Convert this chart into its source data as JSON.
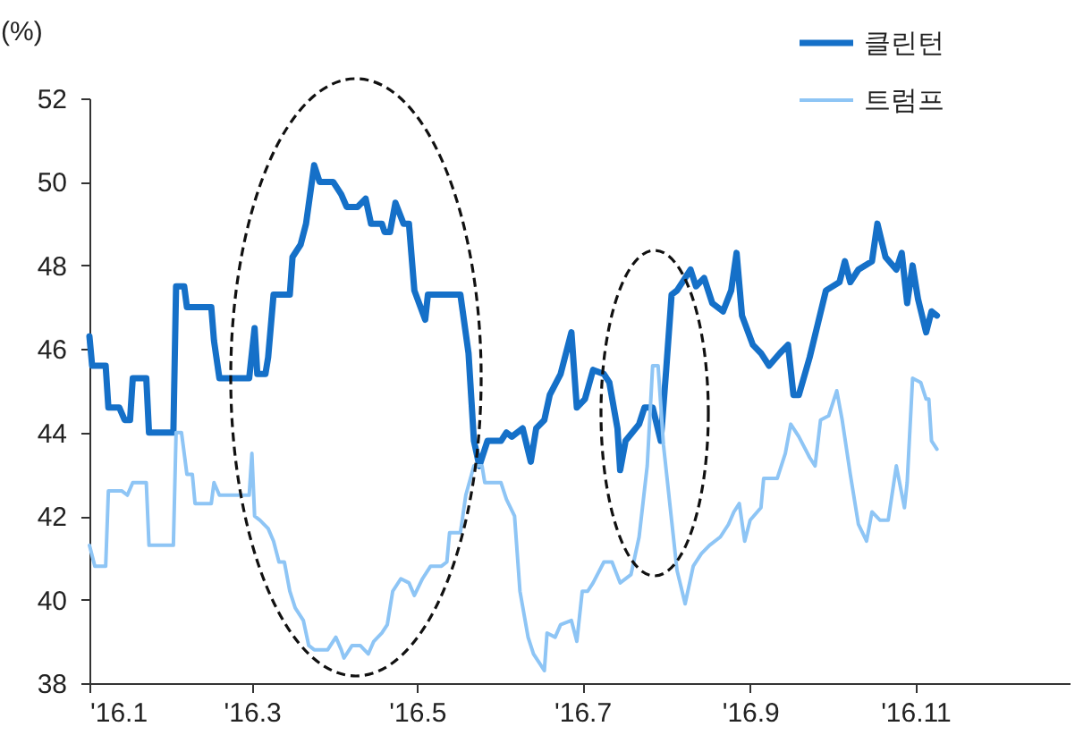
{
  "chart_data": {
    "type": "line",
    "ylabel": "(%)",
    "legend": "top right",
    "grid": false,
    "xlim": [
      "2016-01-01",
      "2016-12-28"
    ],
    "xticks": [
      {
        "value": "2016-01",
        "label": "'16.1"
      },
      {
        "value": "2016-03",
        "label": "'16.3"
      },
      {
        "value": "2016-05",
        "label": "'16.5"
      },
      {
        "value": "2016-07",
        "label": "'16.7"
      },
      {
        "value": "2016-09",
        "label": "'16.9"
      },
      {
        "value": "2016-11",
        "label": "'16.11"
      }
    ],
    "ylim": [
      38,
      52
    ],
    "yticks": [
      38,
      40,
      42,
      44,
      46,
      48,
      50,
      52
    ],
    "series": [
      {
        "name": "클린턴",
        "color": "#1570c8",
        "x": [
          "2016-01-01",
          "2016-01-02",
          "2016-01-07",
          "2016-01-08",
          "2016-01-12",
          "2016-01-14",
          "2016-01-16",
          "2016-01-17",
          "2016-01-22",
          "2016-01-23",
          "2016-02-01",
          "2016-02-02",
          "2016-02-05",
          "2016-02-06",
          "2016-02-15",
          "2016-02-16",
          "2016-02-18",
          "2016-02-29",
          "2016-03-02",
          "2016-03-03",
          "2016-03-06",
          "2016-03-07",
          "2016-03-09",
          "2016-03-15",
          "2016-03-16",
          "2016-03-19",
          "2016-03-21",
          "2016-03-24",
          "2016-03-26",
          "2016-03-31",
          "2016-04-03",
          "2016-04-05",
          "2016-04-09",
          "2016-04-12",
          "2016-04-14",
          "2016-04-18",
          "2016-04-19",
          "2016-04-21",
          "2016-04-23",
          "2016-04-26",
          "2016-04-28",
          "2016-04-30",
          "2016-05-04",
          "2016-05-05",
          "2016-05-17",
          "2016-05-20",
          "2016-05-22",
          "2016-05-24",
          "2016-05-27",
          "2016-06-01",
          "2016-06-03",
          "2016-06-05",
          "2016-06-09",
          "2016-06-12",
          "2016-06-14",
          "2016-06-17",
          "2016-06-19",
          "2016-06-23",
          "2016-06-27",
          "2016-06-29",
          "2016-07-02",
          "2016-07-05",
          "2016-07-09",
          "2016-07-11",
          "2016-07-14",
          "2016-07-15",
          "2016-07-17",
          "2016-07-22",
          "2016-07-24",
          "2016-07-27",
          "2016-07-30",
          "2016-08-01",
          "2016-08-03",
          "2016-08-05",
          "2016-08-10",
          "2016-08-12",
          "2016-08-15",
          "2016-08-18",
          "2016-08-22",
          "2016-08-25",
          "2016-08-27",
          "2016-08-29",
          "2016-09-02",
          "2016-09-05",
          "2016-09-08",
          "2016-09-12",
          "2016-09-15",
          "2016-09-17",
          "2016-09-19",
          "2016-09-23",
          "2016-09-26",
          "2016-09-29",
          "2016-10-04",
          "2016-10-06",
          "2016-10-08",
          "2016-10-11",
          "2016-10-16",
          "2016-10-18",
          "2016-10-21",
          "2016-10-25",
          "2016-10-27",
          "2016-10-29",
          "2016-10-31",
          "2016-11-02",
          "2016-11-05",
          "2016-11-07",
          "2016-11-09"
        ],
        "values": [
          46.3,
          45.6,
          45.6,
          44.6,
          44.6,
          44.3,
          44.3,
          45.3,
          45.3,
          44.0,
          44.0,
          47.5,
          47.5,
          47.0,
          47.0,
          46.2,
          45.3,
          45.3,
          46.5,
          45.4,
          45.4,
          45.8,
          47.3,
          47.3,
          48.2,
          48.5,
          49.0,
          50.4,
          50.0,
          50.0,
          49.7,
          49.4,
          49.4,
          49.6,
          49.0,
          49.0,
          48.8,
          48.8,
          49.5,
          49.0,
          49.0,
          47.4,
          46.7,
          47.3,
          47.3,
          45.9,
          43.8,
          43.2,
          43.8,
          43.8,
          44.0,
          43.9,
          44.1,
          43.3,
          44.1,
          44.3,
          44.9,
          45.4,
          46.4,
          44.6,
          44.8,
          45.5,
          45.4,
          45.2,
          44.1,
          43.1,
          43.8,
          44.2,
          44.6,
          44.6,
          43.8,
          45.5,
          47.3,
          47.4,
          47.9,
          47.5,
          47.7,
          47.1,
          46.9,
          47.4,
          48.3,
          46.8,
          46.1,
          45.9,
          45.6,
          45.9,
          46.1,
          44.9,
          44.9,
          45.8,
          46.6,
          47.4,
          47.6,
          48.1,
          47.6,
          47.9,
          48.1,
          49.0,
          48.2,
          47.9,
          48.3,
          47.1,
          48.0,
          47.2,
          46.4,
          46.9,
          46.8
        ]
      },
      {
        "name": "트럼프",
        "color": "#8ec5f5",
        "x": [
          "2016-01-01",
          "2016-01-03",
          "2016-01-07",
          "2016-01-08",
          "2016-01-13",
          "2016-01-15",
          "2016-01-17",
          "2016-01-22",
          "2016-01-23",
          "2016-02-01",
          "2016-02-02",
          "2016-02-04",
          "2016-02-06",
          "2016-02-08",
          "2016-02-09",
          "2016-02-15",
          "2016-02-16",
          "2016-02-18",
          "2016-02-29",
          "2016-03-01",
          "2016-03-02",
          "2016-03-04",
          "2016-03-07",
          "2016-03-09",
          "2016-03-11",
          "2016-03-13",
          "2016-03-15",
          "2016-03-17",
          "2016-03-20",
          "2016-03-22",
          "2016-03-24",
          "2016-03-29",
          "2016-04-01",
          "2016-04-03",
          "2016-04-04",
          "2016-04-07",
          "2016-04-10",
          "2016-04-13",
          "2016-04-15",
          "2016-04-18",
          "2016-04-20",
          "2016-04-22",
          "2016-04-25",
          "2016-04-28",
          "2016-04-30",
          "2016-05-03",
          "2016-05-06",
          "2016-05-10",
          "2016-05-12",
          "2016-05-13",
          "2016-05-17",
          "2016-05-19",
          "2016-05-22",
          "2016-05-25",
          "2016-05-26",
          "2016-06-01",
          "2016-06-03",
          "2016-06-06",
          "2016-06-08",
          "2016-06-11",
          "2016-06-13",
          "2016-06-15",
          "2016-06-17",
          "2016-06-18",
          "2016-06-21",
          "2016-06-23",
          "2016-06-27",
          "2016-06-29",
          "2016-07-01",
          "2016-07-03",
          "2016-07-05",
          "2016-07-09",
          "2016-07-12",
          "2016-07-15",
          "2016-07-19",
          "2016-07-22",
          "2016-07-25",
          "2016-07-27",
          "2016-07-29",
          "2016-07-31",
          "2016-08-03",
          "2016-08-05",
          "2016-08-08",
          "2016-08-11",
          "2016-08-14",
          "2016-08-17",
          "2016-08-21",
          "2016-08-24",
          "2016-08-26",
          "2016-08-28",
          "2016-08-30",
          "2016-09-01",
          "2016-09-05",
          "2016-09-06",
          "2016-09-11",
          "2016-09-14",
          "2016-09-16",
          "2016-09-19",
          "2016-09-23",
          "2016-09-25",
          "2016-09-27",
          "2016-09-30",
          "2016-10-03",
          "2016-10-05",
          "2016-10-08",
          "2016-10-11",
          "2016-10-14",
          "2016-10-16",
          "2016-10-19",
          "2016-10-22",
          "2016-10-25",
          "2016-10-28",
          "2016-10-29",
          "2016-10-31",
          "2016-11-03",
          "2016-11-05",
          "2016-11-06",
          "2016-11-07",
          "2016-11-09"
        ],
        "values": [
          41.3,
          40.8,
          40.8,
          42.6,
          42.6,
          42.5,
          42.8,
          42.8,
          41.3,
          41.3,
          44.0,
          44.0,
          43.0,
          43.0,
          42.3,
          42.3,
          42.8,
          42.5,
          42.5,
          43.5,
          42.0,
          41.9,
          41.7,
          41.4,
          40.9,
          40.9,
          40.2,
          39.8,
          39.5,
          38.9,
          38.8,
          38.8,
          39.1,
          38.8,
          38.6,
          38.9,
          38.9,
          38.7,
          39.0,
          39.2,
          39.4,
          40.2,
          40.5,
          40.4,
          40.1,
          40.5,
          40.8,
          40.8,
          40.9,
          41.6,
          41.6,
          42.5,
          43.2,
          43.2,
          42.8,
          42.8,
          42.4,
          42.0,
          40.2,
          39.1,
          38.7,
          38.5,
          38.3,
          39.2,
          39.1,
          39.4,
          39.5,
          39.0,
          40.2,
          40.2,
          40.4,
          40.9,
          40.9,
          40.4,
          40.6,
          41.5,
          43.2,
          45.6,
          45.6,
          43.7,
          41.9,
          40.7,
          39.9,
          40.8,
          41.1,
          41.3,
          41.5,
          41.8,
          42.1,
          42.3,
          41.4,
          41.9,
          42.2,
          42.9,
          42.9,
          43.5,
          44.2,
          43.9,
          43.4,
          43.2,
          44.3,
          44.4,
          45.0,
          44.3,
          43.0,
          41.8,
          41.4,
          42.1,
          41.9,
          41.9,
          43.2,
          42.2,
          42.8,
          45.3,
          45.2,
          44.8,
          44.8,
          43.8,
          43.6
        ]
      }
    ]
  }
}
